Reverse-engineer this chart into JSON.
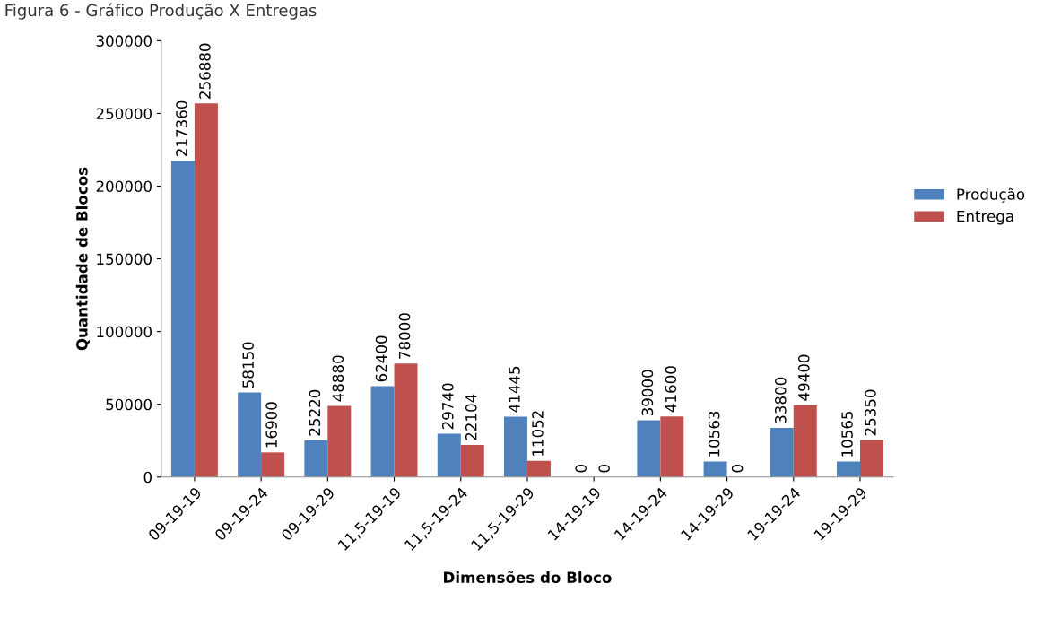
{
  "chart_data": {
    "type": "bar",
    "title": "Figura 6 - Gráfico Produção X Entregas",
    "xlabel": "Dimensões do Bloco",
    "ylabel": "Quantidade de Blocos",
    "categories": [
      "09-19-19",
      "09-19-24",
      "09-19-29",
      "11,5-19-19",
      "11,5-19-24",
      "11,5-19-29",
      "14-19-19",
      "14-19-24",
      "14-19-29",
      "19-19-24",
      "19-19-29"
    ],
    "series": [
      {
        "name": "Produção",
        "color": "#4f81bd",
        "values": [
          217360,
          58150,
          25220,
          62400,
          29740,
          41445,
          0,
          39000,
          10563,
          33800,
          10565
        ]
      },
      {
        "name": "Entrega",
        "color": "#c0504d",
        "values": [
          256880,
          16900,
          48880,
          78000,
          22104,
          11052,
          0,
          41600,
          0,
          49400,
          25350
        ]
      }
    ],
    "ylim": [
      0,
      300000
    ],
    "yticks": [
      0,
      50000,
      100000,
      150000,
      200000,
      250000,
      300000
    ],
    "data_labels": true,
    "grid": false,
    "legend": "right"
  }
}
